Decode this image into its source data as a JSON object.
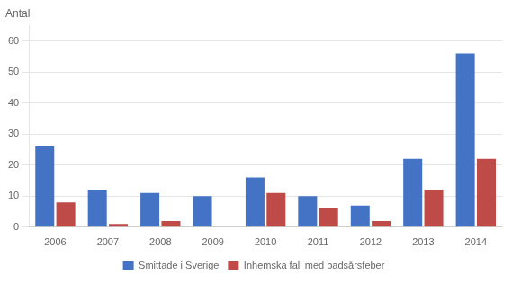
{
  "chart_data": {
    "type": "bar",
    "ylabel": "Antal",
    "categories": [
      "2006",
      "2007",
      "2008",
      "2009",
      "2010",
      "2011",
      "2012",
      "2013",
      "2014"
    ],
    "series": [
      {
        "name": "Smittade i Sverige",
        "color": "#4472C4",
        "values": [
          26,
          12,
          11,
          10,
          16,
          10,
          7,
          22,
          56
        ]
      },
      {
        "name": "Inhemska fall med badsårsfeber",
        "color": "#BE4B48",
        "values": [
          8,
          1,
          2,
          0,
          11,
          6,
          2,
          12,
          22
        ]
      }
    ],
    "ylim": [
      0,
      65
    ],
    "yticks": [
      0,
      10,
      20,
      30,
      40,
      50,
      60
    ],
    "grid": true,
    "legend": "bottom"
  }
}
